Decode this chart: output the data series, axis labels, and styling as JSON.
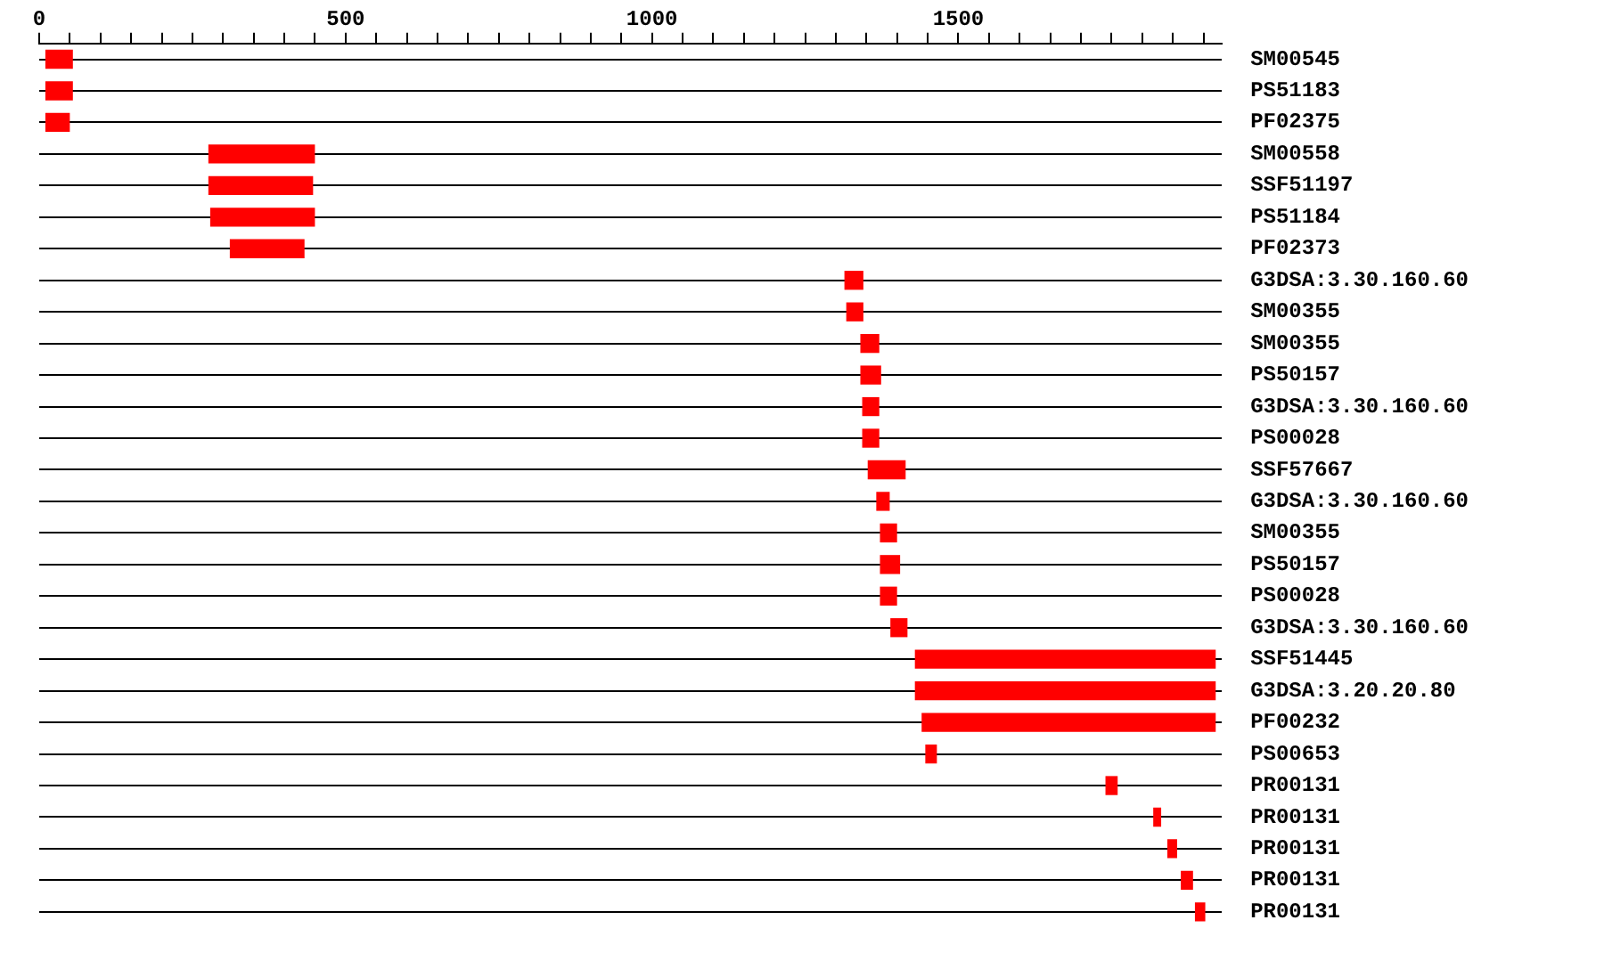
{
  "chart_data": {
    "type": "bar",
    "orientation": "horizontal",
    "grid": "y",
    "categories": [
      "SM00545",
      "PS51183",
      "PF02375",
      "SM00558",
      "SSF51197",
      "PS51184",
      "PF02373",
      "G3DSA:3.30.160.60",
      "SM00355",
      "SM00355",
      "PS50157",
      "G3DSA:3.30.160.60",
      "PS00028",
      "SSF57667",
      "G3DSA:3.30.160.60",
      "SM00355",
      "PS50157",
      "PS00028",
      "G3DSA:3.30.160.60",
      "SSF51445",
      "G3DSA:3.20.20.80",
      "PF00232",
      "PS00653",
      "PR00131",
      "PR00131",
      "PR00131",
      "PR00131",
      "PR00131"
    ],
    "base": [
      11,
      11,
      11,
      277,
      277,
      280,
      312,
      1315,
      1318,
      1341,
      1341,
      1344,
      1344,
      1353,
      1367,
      1373,
      1373,
      1373,
      1390,
      1430,
      1430,
      1441,
      1447,
      1741,
      1819,
      1842,
      1864,
      1887
    ],
    "values": [
      43,
      43,
      38,
      172,
      169,
      169,
      120,
      29,
      26,
      29,
      32,
      26,
      26,
      60,
      20,
      26,
      31,
      26,
      26,
      489,
      489,
      478,
      17,
      18,
      11,
      14,
      18,
      15
    ],
    "color": "#ff0000",
    "xlim": [
      0,
      1930
    ],
    "xticks": [
      0,
      {
        "value": 50,
        "label": null
      },
      {
        "value": 100,
        "label": null
      },
      {
        "value": 150,
        "label": null
      },
      {
        "value": 200,
        "label": null
      },
      {
        "value": 250,
        "label": null
      },
      {
        "value": 300,
        "label": null
      },
      {
        "value": 350,
        "label": null
      },
      {
        "value": 400,
        "label": null
      },
      {
        "value": 450,
        "label": null
      },
      500,
      {
        "value": 550,
        "label": null
      },
      {
        "value": 600,
        "label": null
      },
      {
        "value": 650,
        "label": null
      },
      {
        "value": 700,
        "label": null
      },
      {
        "value": 750,
        "label": null
      },
      {
        "value": 800,
        "label": null
      },
      {
        "value": 850,
        "label": null
      },
      {
        "value": 900,
        "label": null
      },
      {
        "value": 950,
        "label": null
      },
      1000,
      {
        "value": 1050,
        "label": null
      },
      {
        "value": 1100,
        "label": null
      },
      {
        "value": 1150,
        "label": null
      },
      {
        "value": 1200,
        "label": null
      },
      {
        "value": 1250,
        "label": null
      },
      {
        "value": 1300,
        "label": null
      },
      {
        "value": 1350,
        "label": null
      },
      {
        "value": 1400,
        "label": null
      },
      {
        "value": 1450,
        "label": null
      },
      1500,
      {
        "value": 1550,
        "label": null
      },
      {
        "value": 1600,
        "label": null
      },
      {
        "value": 1650,
        "label": null
      },
      {
        "value": 1700,
        "label": null
      },
      {
        "value": 1750,
        "label": null
      },
      {
        "value": 1800,
        "label": null
      },
      {
        "value": 1850,
        "label": null
      },
      {
        "value": 1900,
        "label": null
      }
    ]
  }
}
